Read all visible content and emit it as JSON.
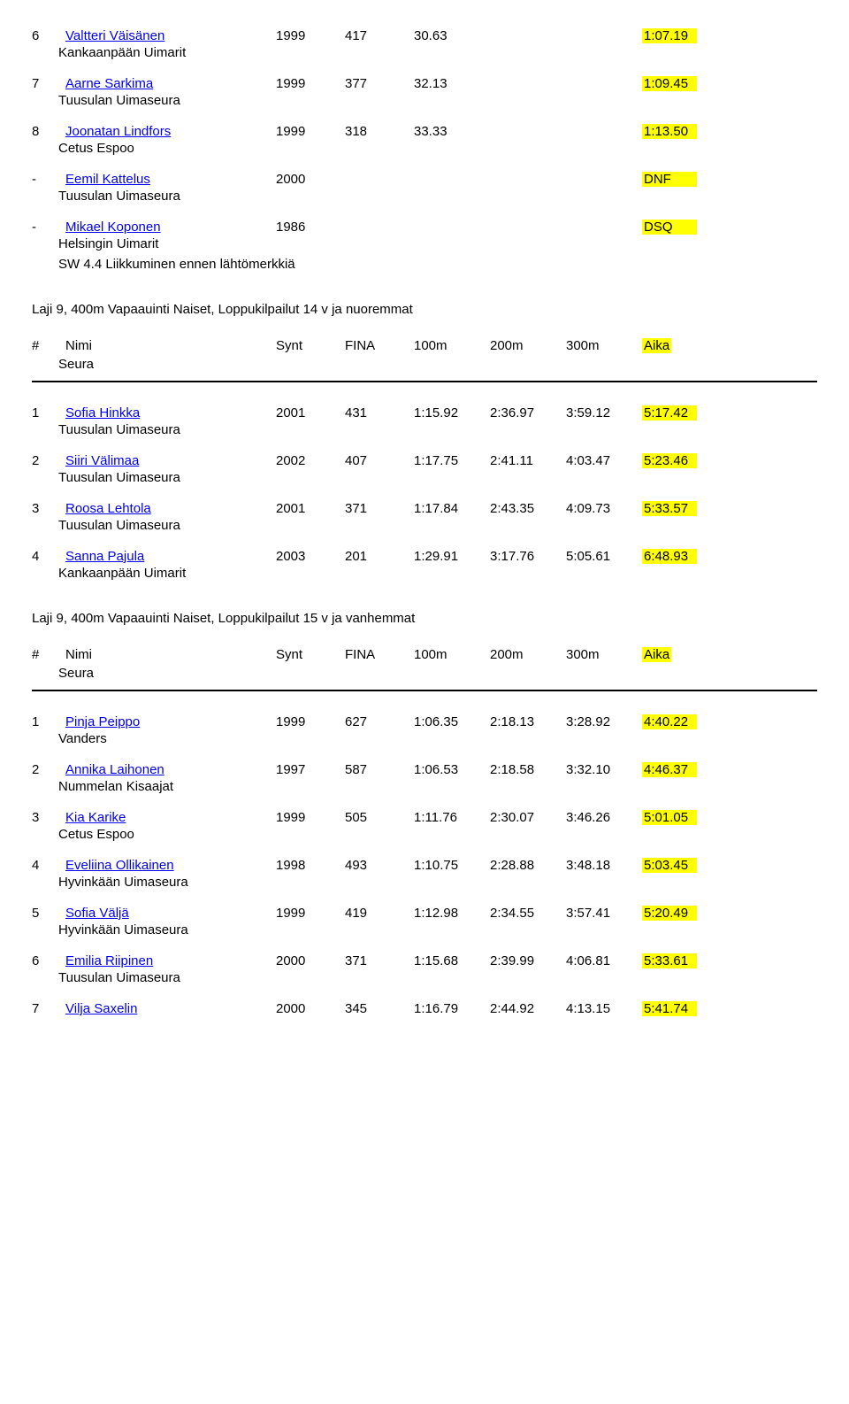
{
  "top_results": [
    {
      "rank": "6",
      "name": "Valtteri Väisänen",
      "year": "1999",
      "fina": "417",
      "s1": "30.63",
      "s2": "",
      "s3": "",
      "time": "1:07.19",
      "team": "Kankaanpään Uimarit"
    },
    {
      "rank": "7",
      "name": "Aarne Sarkima",
      "year": "1999",
      "fina": "377",
      "s1": "32.13",
      "s2": "",
      "s3": "",
      "time": "1:09.45",
      "team": "Tuusulan Uimaseura"
    },
    {
      "rank": "8",
      "name": "Joonatan Lindfors",
      "year": "1999",
      "fina": "318",
      "s1": "33.33",
      "s2": "",
      "s3": "",
      "time": "1:13.50",
      "team": "Cetus Espoo"
    },
    {
      "rank": "-",
      "name": "Eemil Kattelus",
      "year": "2000",
      "fina": "",
      "s1": "",
      "s2": "",
      "s3": "",
      "time": "DNF",
      "team": "Tuusulan Uimaseura"
    },
    {
      "rank": "-",
      "name": "Mikael Koponen",
      "year": "1986",
      "fina": "",
      "s1": "",
      "s2": "",
      "s3": "",
      "time": "DSQ",
      "team": "Helsingin Uimarit",
      "extra": "SW 4.4 Liikkuminen ennen lähtömerkkiä"
    }
  ],
  "event_a": {
    "title": "Laji 9, 400m Vapaauinti Naiset, Loppukilpailut 14 v ja nuoremmat",
    "header": {
      "rank": "#",
      "name": "Nimi",
      "year": "Synt",
      "fina": "FINA",
      "s1": "100m",
      "s2": "200m",
      "s3": "300m",
      "time": "Aika",
      "sub": "Seura"
    },
    "rows": [
      {
        "rank": "1",
        "name": "Sofia Hinkka",
        "year": "2001",
        "fina": "431",
        "s1": "1:15.92",
        "s2": "2:36.97",
        "s3": "3:59.12",
        "time": "5:17.42",
        "team": "Tuusulan Uimaseura"
      },
      {
        "rank": "2",
        "name": "Siiri Välimaa",
        "year": "2002",
        "fina": "407",
        "s1": "1:17.75",
        "s2": "2:41.11",
        "s3": "4:03.47",
        "time": "5:23.46",
        "team": "Tuusulan Uimaseura"
      },
      {
        "rank": "3",
        "name": "Roosa Lehtola",
        "year": "2001",
        "fina": "371",
        "s1": "1:17.84",
        "s2": "2:43.35",
        "s3": "4:09.73",
        "time": "5:33.57",
        "team": "Tuusulan Uimaseura"
      },
      {
        "rank": "4",
        "name": "Sanna Pajula",
        "year": "2003",
        "fina": "201",
        "s1": "1:29.91",
        "s2": "3:17.76",
        "s3": "5:05.61",
        "time": "6:48.93",
        "team": "Kankaanpään Uimarit"
      }
    ]
  },
  "event_b": {
    "title": "Laji 9, 400m Vapaauinti Naiset, Loppukilpailut 15 v ja vanhemmat",
    "header": {
      "rank": "#",
      "name": "Nimi",
      "year": "Synt",
      "fina": "FINA",
      "s1": "100m",
      "s2": "200m",
      "s3": "300m",
      "time": "Aika",
      "sub": "Seura"
    },
    "rows": [
      {
        "rank": "1",
        "name": "Pinja Peippo",
        "year": "1999",
        "fina": "627",
        "s1": "1:06.35",
        "s2": "2:18.13",
        "s3": "3:28.92",
        "time": "4:40.22",
        "team": "Vanders"
      },
      {
        "rank": "2",
        "name": "Annika Laihonen",
        "year": "1997",
        "fina": "587",
        "s1": "1:06.53",
        "s2": "2:18.58",
        "s3": "3:32.10",
        "time": "4:46.37",
        "team": "Nummelan Kisaajat"
      },
      {
        "rank": "3",
        "name": "Kia Karike",
        "year": "1999",
        "fina": "505",
        "s1": "1:11.76",
        "s2": "2:30.07",
        "s3": "3:46.26",
        "time": "5:01.05",
        "team": "Cetus Espoo"
      },
      {
        "rank": "4",
        "name": "Eveliina Ollikainen",
        "year": "1998",
        "fina": "493",
        "s1": "1:10.75",
        "s2": "2:28.88",
        "s3": "3:48.18",
        "time": "5:03.45",
        "team": "Hyvinkään Uimaseura"
      },
      {
        "rank": "5",
        "name": "Sofia Väljä",
        "year": "1999",
        "fina": "419",
        "s1": "1:12.98",
        "s2": "2:34.55",
        "s3": "3:57.41",
        "time": "5:20.49",
        "team": "Hyvinkään Uimaseura"
      },
      {
        "rank": "6",
        "name": "Emilia Riipinen",
        "year": "2000",
        "fina": "371",
        "s1": "1:15.68",
        "s2": "2:39.99",
        "s3": "4:06.81",
        "time": "5:33.61",
        "team": "Tuusulan Uimaseura"
      },
      {
        "rank": "7",
        "name": "Vilja Saxelin",
        "year": "2000",
        "fina": "345",
        "s1": "1:16.79",
        "s2": "2:44.92",
        "s3": "4:13.15",
        "time": "5:41.74",
        "team": ""
      }
    ]
  }
}
